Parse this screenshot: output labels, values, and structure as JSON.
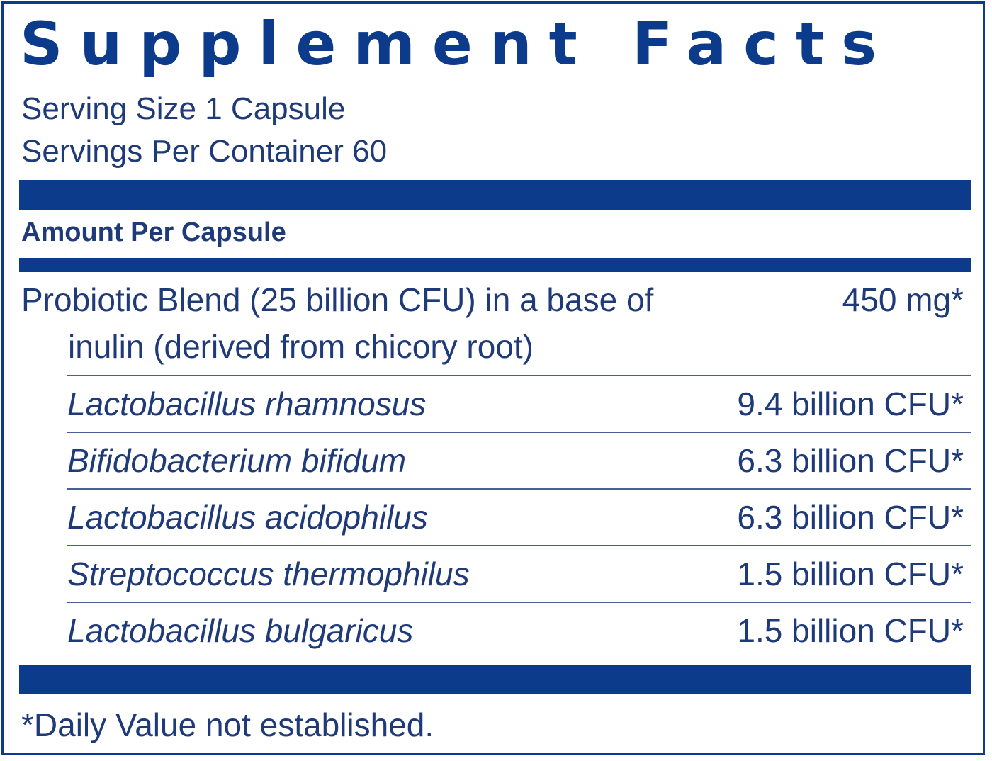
{
  "label": {
    "title": "Supplement Facts",
    "serving_size": "Serving Size 1 Capsule",
    "servings_per_container": "Servings Per Container 60",
    "amount_header": "Amount Per Capsule",
    "blend": {
      "name_line1": "Probiotic Blend (25 billion CFU) in a base of",
      "name_line2": "inulin (derived from chicory root)",
      "amount": "450 mg*"
    },
    "ingredients": [
      {
        "name": "Lactobacillus rhamnosus",
        "amount": "9.4 billion CFU*"
      },
      {
        "name": "Bifidobacterium bifidum",
        "amount": "6.3 billion CFU*"
      },
      {
        "name": "Lactobacillus acidophilus",
        "amount": "6.3 billion CFU*"
      },
      {
        "name": "Streptococcus thermophilus",
        "amount": "1.5 billion CFU*"
      },
      {
        "name": "Lactobacillus bulgaricus",
        "amount": "1.5 billion CFU*"
      }
    ],
    "footnote": "*Daily Value not established."
  },
  "colors": {
    "brand_blue": "#0d3b8c",
    "text_blue": "#1f3a78",
    "rule_blue": "#4a5f96",
    "background": "#ffffff"
  }
}
